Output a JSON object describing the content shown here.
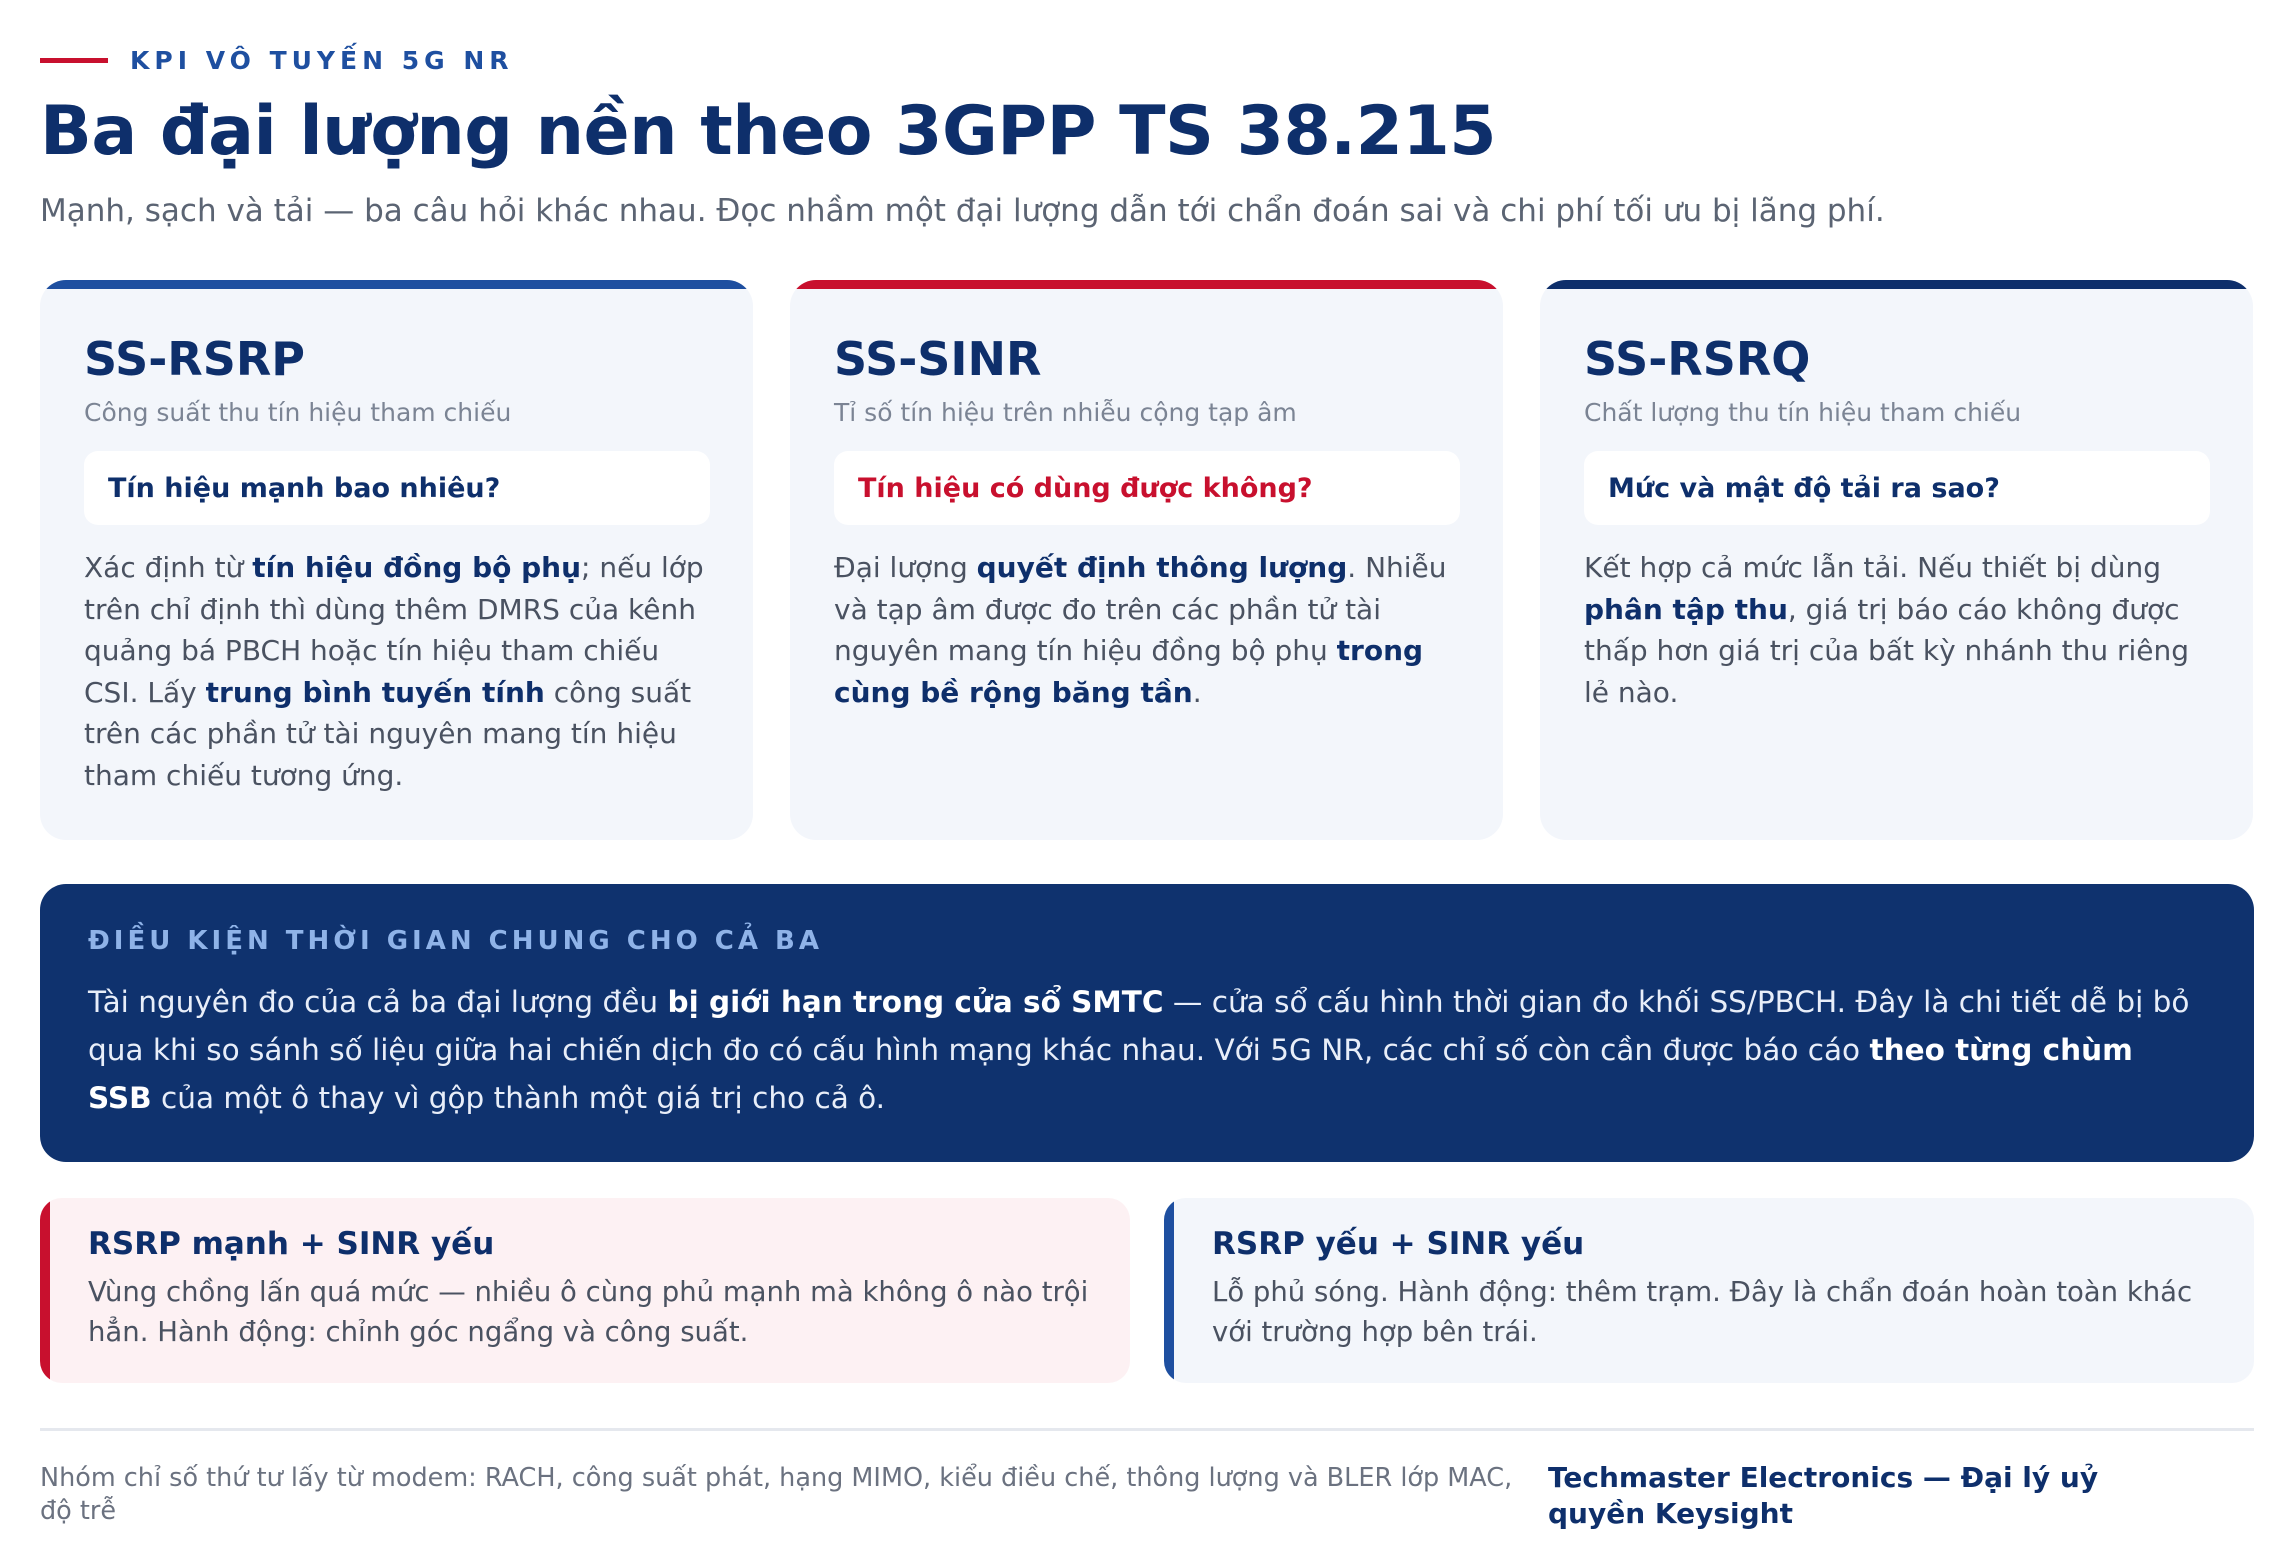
{
  "header": {
    "eyebrow": "KPI VÔ TUYẾN 5G NR",
    "title": "Ba đại lượng nền theo 3GPP TS 38.215",
    "subtitle": "Mạnh, sạch và tải — ba câu hỏi khác nhau. Đọc nhầm một đại lượng dẫn tới chẩn đoán sai và chi phí tối ưu bị lãng phí."
  },
  "colors": {
    "navy": "#0e2f6b",
    "blue": "#1e4fa0",
    "red": "#c8102e",
    "card_bg": "#f3f6fb",
    "banner_bg": "#0f326e"
  },
  "cards": [
    {
      "title": "SS-RSRP",
      "subtitle": "Công suất thu tín hiệu tham chiếu",
      "question": "Tín hiệu mạnh bao nhiêu?",
      "accent": "#1e4fa0",
      "question_color": "#0e2f6b",
      "body": [
        {
          "t": "Xác định từ "
        },
        {
          "t": "tín hiệu đồng bộ phụ",
          "b": true
        },
        {
          "t": "; nếu lớp trên chỉ định thì dùng thêm DMRS của kênh quảng bá PBCH hoặc tín hiệu tham chiếu CSI. Lấy "
        },
        {
          "t": "trung bình tuyến tính",
          "b": true
        },
        {
          "t": " công suất trên các phần tử tài nguyên mang tín hiệu tham chiếu tương ứng."
        }
      ]
    },
    {
      "title": "SS-SINR",
      "subtitle": "Tỉ số tín hiệu trên nhiễu cộng tạp âm",
      "question": "Tín hiệu có dùng được không?",
      "accent": "#c8102e",
      "question_color": "#c8102e",
      "body": [
        {
          "t": "Đại lượng "
        },
        {
          "t": "quyết định thông lượng",
          "b": true
        },
        {
          "t": ". Nhiễu và tạp âm được đo trên các phần tử tài nguyên mang tín hiệu đồng bộ phụ "
        },
        {
          "t": "trong cùng bề rộng băng tần",
          "b": true
        },
        {
          "t": "."
        }
      ]
    },
    {
      "title": "SS-RSRQ",
      "subtitle": "Chất lượng thu tín hiệu tham chiếu",
      "question": "Mức và mật độ tải ra sao?",
      "accent": "#0e2f6b",
      "question_color": "#0e2f6b",
      "body": [
        {
          "t": "Kết hợp cả mức lẫn tải. Nếu thiết bị dùng "
        },
        {
          "t": "phân tập thu",
          "b": true
        },
        {
          "t": ", giá trị báo cáo không được thấp hơn giá trị của bất kỳ nhánh thu riêng lẻ nào."
        }
      ]
    }
  ],
  "banner": {
    "label": "ĐIỀU KIỆN THỜI GIAN CHUNG CHO CẢ BA",
    "body": [
      {
        "t": "Tài nguyên đo của cả ba đại lượng đều "
      },
      {
        "t": "bị giới hạn trong cửa sổ SMTC",
        "b": true
      },
      {
        "t": " — cửa sổ cấu hình thời gian đo khối SS/PBCH. Đây là chi tiết dễ bị bỏ qua khi so sánh số liệu giữa hai chiến dịch đo có cấu hình mạng khác nhau. Với 5G NR, các chỉ số còn cần được báo cáo "
      },
      {
        "t": "theo từng chùm SSB",
        "b": true
      },
      {
        "t": " của một ô thay vì gộp thành một giá trị cho cả ô."
      }
    ]
  },
  "diagnoses": [
    {
      "title": "RSRP mạnh + SINR yếu",
      "body": "Vùng chồng lấn quá mức — nhiều ô cùng phủ mạnh mà không ô nào trội hẳn. Hành động: chỉnh góc ngẩng và công suất.",
      "stripe": "#c8102e",
      "bg": "#fdf1f3"
    },
    {
      "title": "RSRP yếu + SINR yếu",
      "body": "Lỗ phủ sóng. Hành động: thêm trạm. Đây là chẩn đoán hoàn toàn khác với trường hợp bên trái.",
      "stripe": "#1e4fa0",
      "bg": "#f3f6fb"
    }
  ],
  "footer": {
    "note": "Nhóm chỉ số thứ tư lấy từ modem: RACH, công suất phát, hạng MIMO, kiểu điều chế, thông lượng và BLER lớp MAC, độ trễ",
    "brand": "Techmaster Electronics — Đại lý uỷ quyền Keysight"
  }
}
